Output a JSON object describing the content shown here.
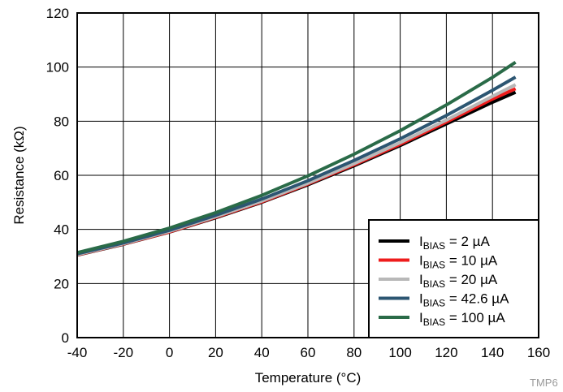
{
  "chart_data": {
    "type": "line",
    "xlabel": "Temperature (°C)",
    "ylabel": "Resistance (kΩ)",
    "xlim": [
      -40,
      160
    ],
    "ylim": [
      0,
      120
    ],
    "x_ticks": [
      -40,
      -20,
      0,
      20,
      40,
      60,
      80,
      100,
      120,
      140,
      160
    ],
    "y_ticks": [
      0,
      20,
      40,
      60,
      80,
      100,
      120
    ],
    "grid": true,
    "legend_position": "bottom-right",
    "footer_code": "TMP6",
    "series": [
      {
        "legend_main": "I",
        "legend_sub": "BIAS",
        "legend_rest": " = 2 µA",
        "color": "#000000",
        "x": [
          -40,
          -20,
          0,
          20,
          40,
          60,
          80,
          100,
          120,
          140,
          150
        ],
        "y": [
          30.5,
          34.5,
          39.0,
          44.3,
          50.0,
          56.5,
          63.5,
          71.0,
          79.0,
          87.0,
          90.7
        ]
      },
      {
        "legend_main": "I",
        "legend_sub": "BIAS",
        "legend_rest": " = 10 µA",
        "color": "#ee1c1c",
        "x": [
          -40,
          -20,
          0,
          20,
          40,
          60,
          80,
          100,
          120,
          140,
          150
        ],
        "y": [
          30.6,
          34.6,
          39.1,
          44.5,
          50.2,
          56.8,
          63.9,
          71.5,
          79.7,
          88.2,
          92.0
        ]
      },
      {
        "legend_main": "I",
        "legend_sub": "BIAS",
        "legend_rest": " = 20 µA",
        "color": "#b8b8b8",
        "x": [
          -40,
          -20,
          0,
          20,
          40,
          60,
          80,
          100,
          120,
          140,
          150
        ],
        "y": [
          30.7,
          34.7,
          39.3,
          44.7,
          50.5,
          57.1,
          64.3,
          72.1,
          80.4,
          89.2,
          93.5
        ]
      },
      {
        "legend_main": "I",
        "legend_sub": "BIAS",
        "legend_rest": " = 42.6 µA",
        "color": "#2c5672",
        "x": [
          -40,
          -20,
          0,
          20,
          40,
          60,
          80,
          100,
          120,
          140,
          150
        ],
        "y": [
          31.0,
          35.0,
          39.7,
          45.2,
          51.2,
          58.0,
          65.5,
          73.5,
          82.1,
          91.4,
          96.3
        ]
      },
      {
        "legend_main": "I",
        "legend_sub": "BIAS",
        "legend_rest": " = 100 µA",
        "color": "#2a6b48",
        "x": [
          -40,
          -20,
          0,
          20,
          40,
          60,
          80,
          100,
          120,
          140,
          150
        ],
        "y": [
          31.4,
          35.6,
          40.5,
          46.2,
          52.6,
          59.8,
          67.8,
          76.5,
          86.0,
          96.2,
          101.8
        ]
      }
    ]
  }
}
